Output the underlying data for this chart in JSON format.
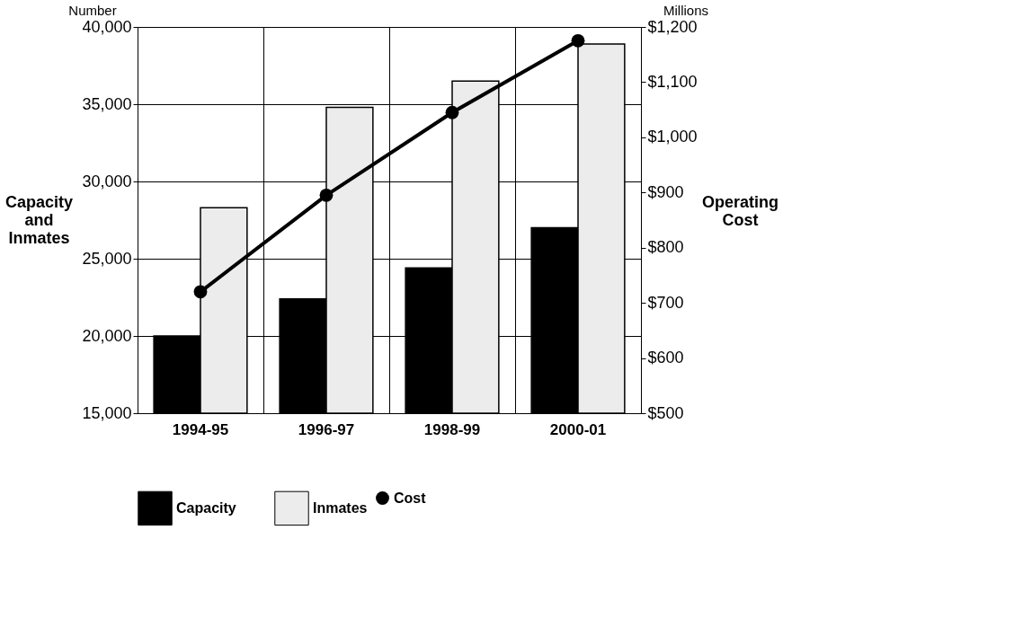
{
  "chart_data": {
    "type": "bar",
    "categories": [
      "1994-95",
      "1996-97",
      "1998-99",
      "2000-01"
    ],
    "ylabel": "Capacity and Inmates",
    "y2label": "Operating Cost",
    "annotations": [
      "Number",
      "Millions"
    ],
    "series": [
      {
        "name": "Capacity",
        "type": "bar",
        "color": "#000000",
        "values": [
          20000,
          22400,
          24400,
          27000
        ]
      },
      {
        "name": "Inmates",
        "type": "bar",
        "color": "#ececec",
        "values": [
          28300,
          34800,
          36500,
          38900
        ]
      },
      {
        "name": "Cost",
        "type": "line",
        "axis": "y2",
        "color": "#000000",
        "marker": "circle",
        "values": [
          720,
          895,
          1045,
          1175
        ]
      }
    ],
    "ylim": [
      15000,
      40000
    ],
    "yticks": [
      {
        "value": 15000,
        "label": "15,000"
      },
      {
        "value": 20000,
        "label": "20,000"
      },
      {
        "value": 25000,
        "label": "25,000"
      },
      {
        "value": 30000,
        "label": "30,000"
      },
      {
        "value": 35000,
        "label": "35,000"
      },
      {
        "value": 40000,
        "label": "40,000"
      }
    ],
    "y2lim": [
      500,
      1200
    ],
    "y2ticks": [
      {
        "value": 500,
        "label": "$500"
      },
      {
        "value": 600,
        "label": "$600"
      },
      {
        "value": 700,
        "label": "$700"
      },
      {
        "value": 800,
        "label": "$800"
      },
      {
        "value": 900,
        "label": "$900"
      },
      {
        "value": 1000,
        "label": "$1,000"
      },
      {
        "value": 1100,
        "label": "$1,100"
      },
      {
        "value": 1200,
        "label": "$1,200"
      }
    ],
    "grid": true,
    "legend": "bottom"
  }
}
